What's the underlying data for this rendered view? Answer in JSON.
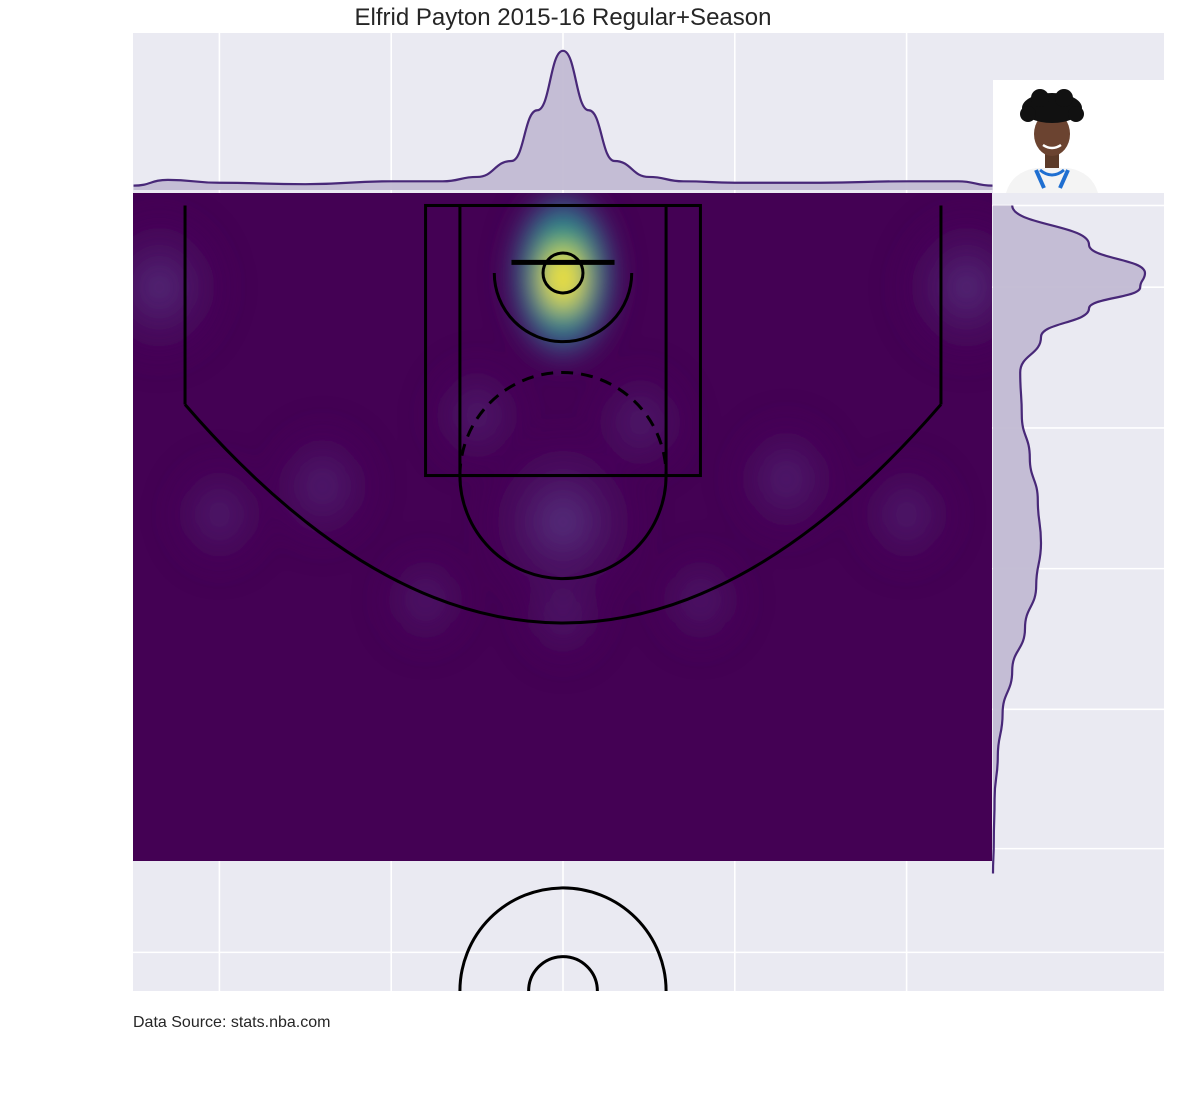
{
  "title": "Elfrid Payton 2015-16 Regular+Season",
  "source_note": "Data Source: stats.nba.com",
  "player_photo": {
    "name": "player-headshot",
    "jersey_color": "#1f6fd1"
  },
  "colors": {
    "axes_background": "#eaeaf2",
    "grid": "#ffffff",
    "kde_base": "#440154",
    "kde_peak": "#fde725",
    "marginal_line": "#482878",
    "marginal_fill": "#c2bbd3",
    "court_lines": "#000000"
  },
  "chart_data": {
    "type": "heatmap",
    "kind": "shot-location kde (joint plot with marginal densities)",
    "colormap": "viridis",
    "xlim": [
      -250,
      250
    ],
    "ylim": [
      422.5,
      -47.5
    ],
    "grid": true,
    "hotspots": [
      {
        "x": 0,
        "y": 0,
        "density": 1.0
      },
      {
        "x": 0,
        "y": 175,
        "density": 0.12
      },
      {
        "x": -235,
        "y": 10,
        "density": 0.09
      },
      {
        "x": 235,
        "y": 10,
        "density": 0.09
      },
      {
        "x": -140,
        "y": 150,
        "density": 0.06
      },
      {
        "x": 130,
        "y": 145,
        "density": 0.06
      },
      {
        "x": -50,
        "y": 100,
        "density": 0.05
      },
      {
        "x": 45,
        "y": 105,
        "density": 0.05
      },
      {
        "x": -200,
        "y": 170,
        "density": 0.05
      },
      {
        "x": 200,
        "y": 170,
        "density": 0.05
      },
      {
        "x": -80,
        "y": 230,
        "density": 0.04
      },
      {
        "x": 80,
        "y": 230,
        "density": 0.04
      },
      {
        "x": 0,
        "y": 240,
        "density": 0.04
      }
    ],
    "marginal_x": {
      "x": [
        -250,
        -230,
        -200,
        -150,
        -100,
        -70,
        -50,
        -30,
        -15,
        0,
        15,
        30,
        50,
        70,
        100,
        150,
        200,
        230,
        250
      ],
      "density": [
        0.03,
        0.07,
        0.05,
        0.04,
        0.06,
        0.06,
        0.09,
        0.2,
        0.55,
        0.96,
        0.55,
        0.2,
        0.09,
        0.06,
        0.05,
        0.05,
        0.06,
        0.06,
        0.03
      ]
    },
    "marginal_y": {
      "y": [
        -47.5,
        -20,
        0,
        10,
        25,
        45,
        70,
        100,
        130,
        160,
        190,
        220,
        250,
        280,
        310,
        340,
        370,
        400,
        422.5
      ],
      "density": [
        0.12,
        0.6,
        0.95,
        0.92,
        0.6,
        0.3,
        0.17,
        0.18,
        0.23,
        0.28,
        0.3,
        0.27,
        0.2,
        0.12,
        0.06,
        0.03,
        0.01,
        0.005,
        0.0
      ]
    }
  }
}
